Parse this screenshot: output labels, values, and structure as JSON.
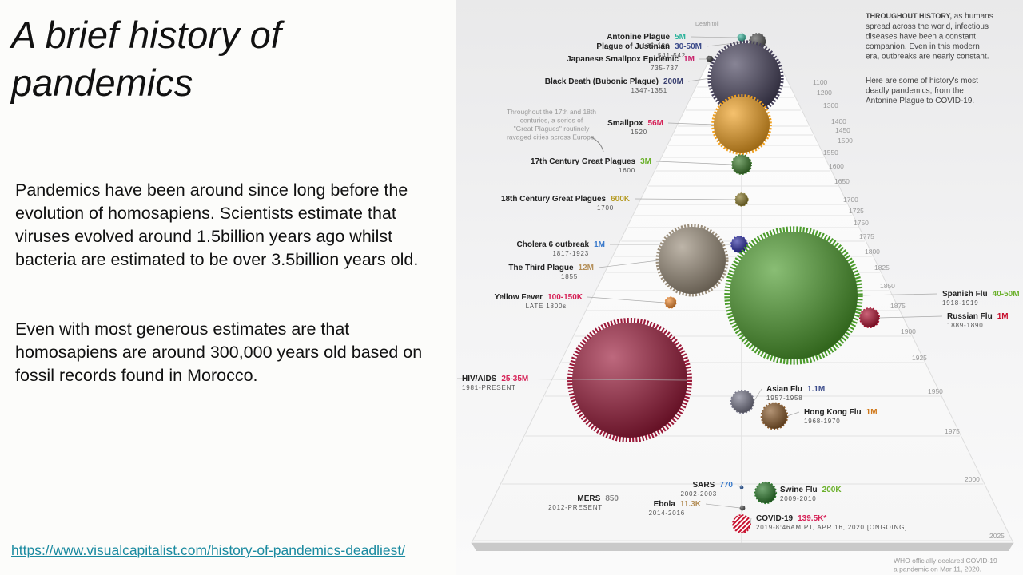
{
  "slide": {
    "title": "A brief history of pandemics",
    "paragraphs": [
      "Pandemics have been around since long before the evolution of homosapiens. Scientists estimate that viruses evolved around 1.5billion years ago whilst bacteria are estimated to be over 3.5billion years old.",
      "Even with most generous estimates are that homosapiens are around 300,000 years old based on fossil records found in Morocco."
    ],
    "link": "https://www.visualcapitalist.com/history-of-pandemics-deadliest/"
  },
  "infographic": {
    "death_toll_label": "Death toll",
    "intro_heading": "THROUGHOUT HISTORY,",
    "intro_lines": [
      " as humans",
      "spread across the world, infectious",
      "diseases have been a constant",
      "companion. Even in this modern",
      "era, outbreaks are nearly constant."
    ],
    "intro2_lines": [
      "Here are some of history's most",
      "deadly pandemics, from the",
      "Antonine Plague to COVID-19."
    ],
    "note_lines": [
      "Throughout the 17th and 18th",
      "centuries, a series of",
      "\"Great Plagues\" routinely",
      "ravaged cities across Europe."
    ],
    "years": [
      "1100",
      "1200",
      "1300",
      "1400",
      "1450",
      "1500",
      "1550",
      "1600",
      "1650",
      "1700",
      "1725",
      "1750",
      "1775",
      "1800",
      "1825",
      "1850",
      "1875",
      "1900",
      "1925",
      "1950",
      "1975",
      "2000",
      "2025"
    ],
    "pandemics": [
      {
        "name": "Antonine Plague",
        "toll": "5M",
        "years": "165-180"
      },
      {
        "name": "Plague of Justinian",
        "toll": "30-50M",
        "years": "541-542"
      },
      {
        "name": "Japanese Smallpox Epidemic",
        "toll": "1M",
        "years": "735-737"
      },
      {
        "name": "Black Death (Bubonic Plague)",
        "toll": "200M",
        "years": "1347-1351"
      },
      {
        "name": "Smallpox",
        "toll": "56M",
        "years": "1520"
      },
      {
        "name": "17th Century Great Plagues",
        "toll": "3M",
        "years": "1600"
      },
      {
        "name": "18th Century Great Plagues",
        "toll": "600K",
        "years": "1700"
      },
      {
        "name": "Cholera 6 outbreak",
        "toll": "1M",
        "years": "1817-1923"
      },
      {
        "name": "The Third Plague",
        "toll": "12M",
        "years": "1855"
      },
      {
        "name": "Yellow Fever",
        "toll": "100-150K",
        "years": "LATE 1800s"
      },
      {
        "name": "Spanish Flu",
        "toll": "40-50M",
        "years": "1918-1919"
      },
      {
        "name": "Russian Flu",
        "toll": "1M",
        "years": "1889-1890"
      },
      {
        "name": "HIV/AIDS",
        "toll": "25-35M",
        "years": "1981-PRESENT"
      },
      {
        "name": "Asian Flu",
        "toll": "1.1M",
        "years": "1957-1958"
      },
      {
        "name": "Hong Kong Flu",
        "toll": "1M",
        "years": "1968-1970"
      },
      {
        "name": "SARS",
        "toll": "770",
        "years": "2002-2003"
      },
      {
        "name": "Swine Flu",
        "toll": "200K",
        "years": "2009-2010"
      },
      {
        "name": "MERS",
        "toll": "850",
        "years": "2012-PRESENT"
      },
      {
        "name": "Ebola",
        "toll": "11.3K",
        "years": "2014-2016"
      },
      {
        "name": "COVID-19",
        "toll": "139.5K*",
        "years": "2019-8:46AM PT, APR 16, 2020 [ONGOING]"
      }
    ],
    "footnote_lines": [
      "WHO officially declared COVID-19",
      "a pandemic on Mar 11, 2020."
    ]
  }
}
